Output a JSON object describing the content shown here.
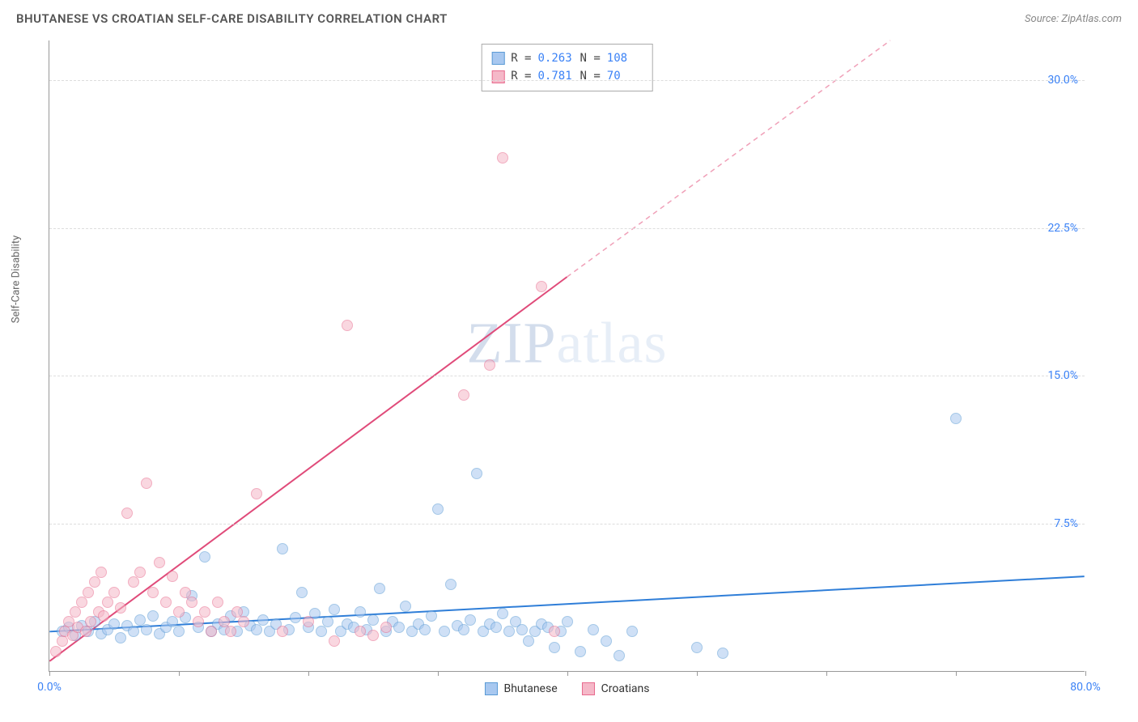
{
  "title": "BHUTANESE VS CROATIAN SELF-CARE DISABILITY CORRELATION CHART",
  "source_label": "Source: ZipAtlas.com",
  "watermark": {
    "left": "ZIP",
    "right": "atlas"
  },
  "y_axis_label": "Self-Care Disability",
  "chart": {
    "type": "scatter",
    "xlim": [
      0,
      80
    ],
    "ylim": [
      0,
      32
    ],
    "x_ticks": [
      0,
      10,
      20,
      30,
      40,
      50,
      60,
      70,
      80
    ],
    "x_tick_labels": {
      "0": "0.0%",
      "80": "80.0%"
    },
    "y_ticks": [
      7.5,
      15.0,
      22.5,
      30.0
    ],
    "y_tick_labels": [
      "7.5%",
      "15.0%",
      "22.5%",
      "30.0%"
    ],
    "y_tick_color": "#3b82f6",
    "x_tick_color": "#3b82f6",
    "grid_color": "#dddddd",
    "background_color": "#ffffff",
    "marker_radius": 7,
    "marker_opacity": 0.55,
    "series": [
      {
        "name": "Bhutanese",
        "fill": "#a8c8f0",
        "stroke": "#5b9bd5",
        "r_value": "0.263",
        "n_value": "108",
        "trend": {
          "x1": 0,
          "y1": 2.0,
          "x2": 80,
          "y2": 4.8,
          "color": "#2f7ed8",
          "width": 2,
          "dash": "none"
        },
        "points": [
          [
            1,
            2.0
          ],
          [
            1.5,
            2.2
          ],
          [
            2,
            1.8
          ],
          [
            2.5,
            2.3
          ],
          [
            3,
            2.0
          ],
          [
            3.5,
            2.5
          ],
          [
            4,
            1.9
          ],
          [
            4.5,
            2.1
          ],
          [
            5,
            2.4
          ],
          [
            5.5,
            1.7
          ],
          [
            6,
            2.3
          ],
          [
            6.5,
            2.0
          ],
          [
            7,
            2.6
          ],
          [
            7.5,
            2.1
          ],
          [
            8,
            2.8
          ],
          [
            8.5,
            1.9
          ],
          [
            9,
            2.2
          ],
          [
            9.5,
            2.5
          ],
          [
            10,
            2.0
          ],
          [
            10.5,
            2.7
          ],
          [
            11,
            3.8
          ],
          [
            11.5,
            2.2
          ],
          [
            12,
            5.8
          ],
          [
            12.5,
            2.0
          ],
          [
            13,
            2.4
          ],
          [
            13.5,
            2.1
          ],
          [
            14,
            2.8
          ],
          [
            14.5,
            2.0
          ],
          [
            15,
            3.0
          ],
          [
            15.5,
            2.3
          ],
          [
            16,
            2.1
          ],
          [
            16.5,
            2.6
          ],
          [
            17,
            2.0
          ],
          [
            17.5,
            2.4
          ],
          [
            18,
            6.2
          ],
          [
            18.5,
            2.1
          ],
          [
            19,
            2.7
          ],
          [
            19.5,
            4.0
          ],
          [
            20,
            2.2
          ],
          [
            20.5,
            2.9
          ],
          [
            21,
            2.0
          ],
          [
            21.5,
            2.5
          ],
          [
            22,
            3.1
          ],
          [
            22.5,
            2.0
          ],
          [
            23,
            2.4
          ],
          [
            23.5,
            2.2
          ],
          [
            24,
            3.0
          ],
          [
            24.5,
            2.1
          ],
          [
            25,
            2.6
          ],
          [
            25.5,
            4.2
          ],
          [
            26,
            2.0
          ],
          [
            26.5,
            2.5
          ],
          [
            27,
            2.2
          ],
          [
            27.5,
            3.3
          ],
          [
            28,
            2.0
          ],
          [
            28.5,
            2.4
          ],
          [
            29,
            2.1
          ],
          [
            29.5,
            2.8
          ],
          [
            30,
            8.2
          ],
          [
            30.5,
            2.0
          ],
          [
            31,
            4.4
          ],
          [
            31.5,
            2.3
          ],
          [
            32,
            2.1
          ],
          [
            32.5,
            2.6
          ],
          [
            33,
            10.0
          ],
          [
            33.5,
            2.0
          ],
          [
            34,
            2.4
          ],
          [
            34.5,
            2.2
          ],
          [
            35,
            2.9
          ],
          [
            35.5,
            2.0
          ],
          [
            36,
            2.5
          ],
          [
            36.5,
            2.1
          ],
          [
            37,
            1.5
          ],
          [
            37.5,
            2.0
          ],
          [
            38,
            2.4
          ],
          [
            38.5,
            2.2
          ],
          [
            39,
            1.2
          ],
          [
            39.5,
            2.0
          ],
          [
            40,
            2.5
          ],
          [
            41,
            1.0
          ],
          [
            42,
            2.1
          ],
          [
            43,
            1.5
          ],
          [
            44,
            0.8
          ],
          [
            45,
            2.0
          ],
          [
            50,
            1.2
          ],
          [
            52,
            0.9
          ],
          [
            70,
            12.8
          ]
        ]
      },
      {
        "name": "Croatians",
        "fill": "#f5b8c8",
        "stroke": "#e86b8e",
        "r_value": "0.781",
        "n_value": "70",
        "trend_solid": {
          "x1": 0,
          "y1": 0.5,
          "x2": 40,
          "y2": 20.0,
          "color": "#e04b7a",
          "width": 2
        },
        "trend_dash": {
          "x1": 40,
          "y1": 20.0,
          "x2": 65,
          "y2": 32.0,
          "color": "#f0a0b8",
          "width": 1.5
        },
        "points": [
          [
            0.5,
            1.0
          ],
          [
            1,
            1.5
          ],
          [
            1.2,
            2.0
          ],
          [
            1.5,
            2.5
          ],
          [
            1.8,
            1.8
          ],
          [
            2,
            3.0
          ],
          [
            2.2,
            2.2
          ],
          [
            2.5,
            3.5
          ],
          [
            2.8,
            2.0
          ],
          [
            3,
            4.0
          ],
          [
            3.2,
            2.5
          ],
          [
            3.5,
            4.5
          ],
          [
            3.8,
            3.0
          ],
          [
            4,
            5.0
          ],
          [
            4.2,
            2.8
          ],
          [
            4.5,
            3.5
          ],
          [
            5,
            4.0
          ],
          [
            5.5,
            3.2
          ],
          [
            6,
            8.0
          ],
          [
            6.5,
            4.5
          ],
          [
            7,
            5.0
          ],
          [
            7.5,
            9.5
          ],
          [
            8,
            4.0
          ],
          [
            8.5,
            5.5
          ],
          [
            9,
            3.5
          ],
          [
            9.5,
            4.8
          ],
          [
            10,
            3.0
          ],
          [
            10.5,
            4.0
          ],
          [
            11,
            3.5
          ],
          [
            11.5,
            2.5
          ],
          [
            12,
            3.0
          ],
          [
            12.5,
            2.0
          ],
          [
            13,
            3.5
          ],
          [
            13.5,
            2.5
          ],
          [
            14,
            2.0
          ],
          [
            14.5,
            3.0
          ],
          [
            15,
            2.5
          ],
          [
            16,
            9.0
          ],
          [
            18,
            2.0
          ],
          [
            20,
            2.5
          ],
          [
            22,
            1.5
          ],
          [
            23,
            17.5
          ],
          [
            24,
            2.0
          ],
          [
            25,
            1.8
          ],
          [
            26,
            2.2
          ],
          [
            32,
            14.0
          ],
          [
            34,
            15.5
          ],
          [
            35,
            26.0
          ],
          [
            38,
            19.5
          ],
          [
            39,
            2.0
          ]
        ]
      }
    ]
  },
  "legend": {
    "items": [
      {
        "label": "Bhutanese",
        "fill": "#a8c8f0",
        "stroke": "#5b9bd5"
      },
      {
        "label": "Croatians",
        "fill": "#f5b8c8",
        "stroke": "#e86b8e"
      }
    ]
  }
}
